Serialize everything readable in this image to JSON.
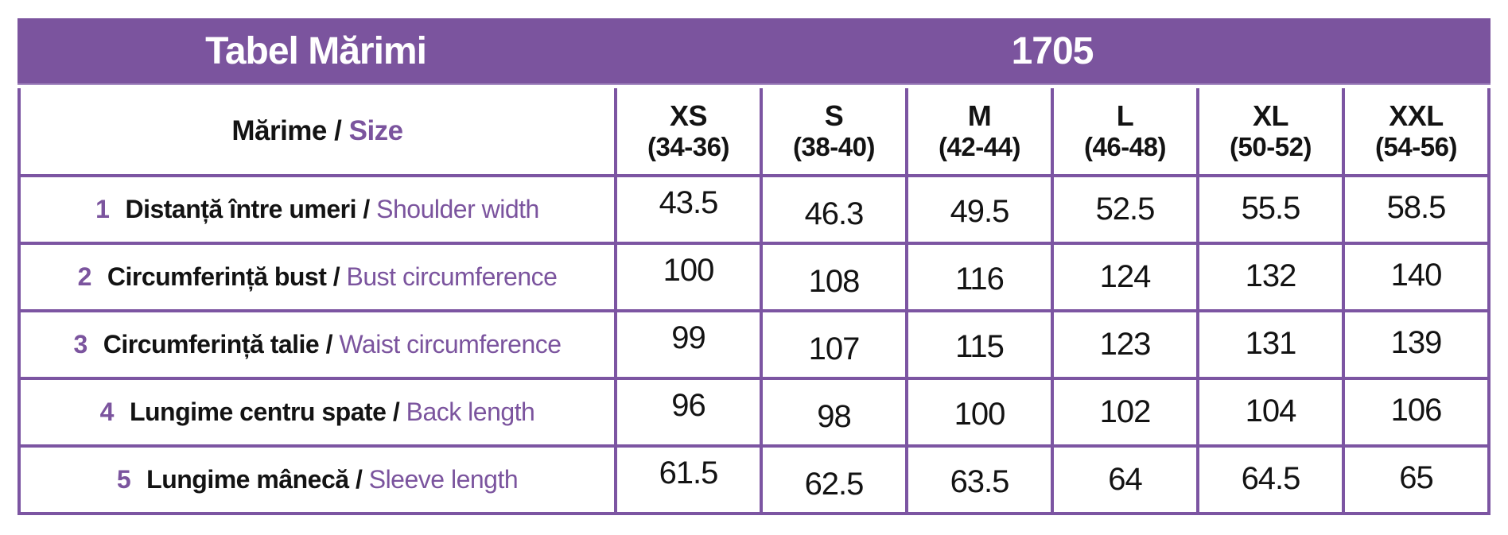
{
  "chart_data": {
    "type": "table",
    "title": "Tabel Mărimi",
    "model": "1705",
    "corner_header": {
      "ro": "Mărime",
      "sep": " / ",
      "en": "Size"
    },
    "columns": [
      {
        "size": "XS",
        "range": "(34-36)"
      },
      {
        "size": "S",
        "range": "(38-40)"
      },
      {
        "size": "M",
        "range": "(42-44)"
      },
      {
        "size": "L",
        "range": "(46-48)"
      },
      {
        "size": "XL",
        "range": "(50-52)"
      },
      {
        "size": "XXL",
        "range": "(54-56)"
      }
    ],
    "rows": [
      {
        "num": "1",
        "ro": "Distanță între umeri",
        "sep": " / ",
        "en": "Shoulder width",
        "values": [
          "43.5",
          "46.3",
          "49.5",
          "52.5",
          "55.5",
          "58.5"
        ]
      },
      {
        "num": "2",
        "ro": "Circumferință bust",
        "sep": " / ",
        "en": "Bust circumference",
        "values": [
          "100",
          "108",
          "116",
          "124",
          "132",
          "140"
        ]
      },
      {
        "num": "3",
        "ro": "Circumferință talie",
        "sep": " / ",
        "en": "Waist circumference",
        "values": [
          "99",
          "107",
          "115",
          "123",
          "131",
          "139"
        ]
      },
      {
        "num": "4",
        "ro": "Lungime centru spate",
        "sep": " / ",
        "en": "Back length",
        "values": [
          "96",
          "98",
          "100",
          "102",
          "104",
          "106"
        ]
      },
      {
        "num": "5",
        "ro": "Lungime mânecă",
        "sep": " / ",
        "en": "Sleeve length",
        "values": [
          "61.5",
          "62.5",
          "63.5",
          "64",
          "64.5",
          "65"
        ]
      }
    ],
    "layout": {
      "legend": "none",
      "grid": "on",
      "header_position": "top"
    }
  },
  "colors": {
    "purple_band": "#7b549e",
    "purple_border": "#7c55a2",
    "purple_text": "#7b549e",
    "text_black": "#131313",
    "band_text": "#ffffff",
    "background": "#ffffff"
  }
}
